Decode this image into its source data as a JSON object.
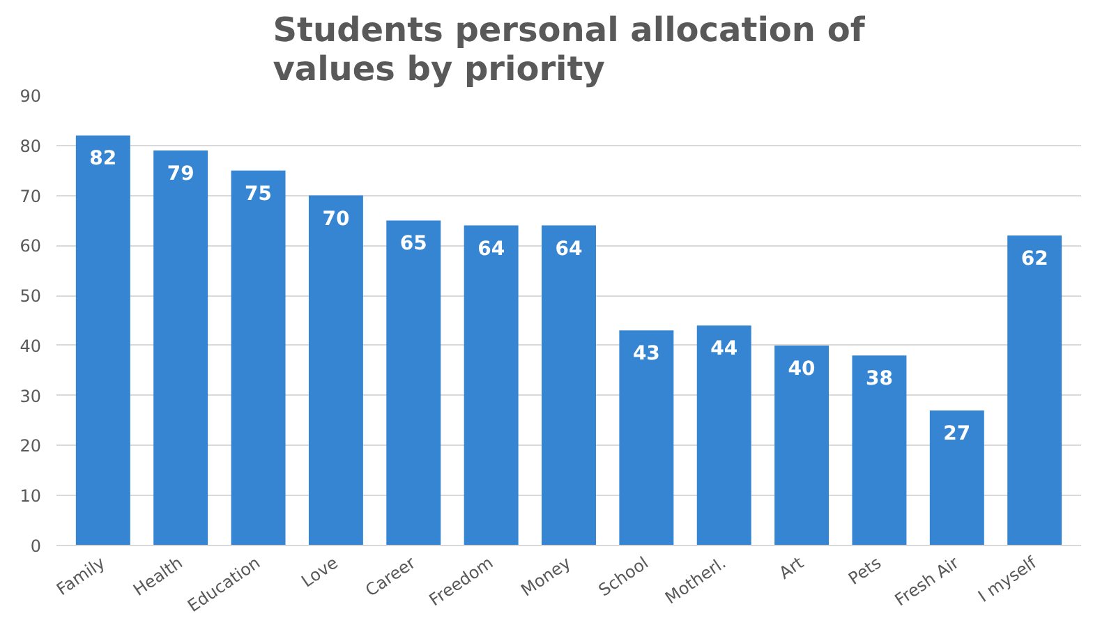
{
  "chart_data": {
    "type": "bar",
    "title": "Students personal allocation of values by priority",
    "categories": [
      "Family",
      "Health",
      "Education",
      "Love",
      "Career",
      "Freedom",
      "Money",
      "School",
      "Motherl.",
      "Art",
      "Pets",
      "Fresh Air",
      "I myself"
    ],
    "values": [
      82,
      79,
      75,
      70,
      65,
      64,
      64,
      43,
      44,
      40,
      38,
      27,
      62
    ],
    "color": "#3585d2",
    "ylim": [
      0,
      90
    ],
    "yticks": [
      0,
      10,
      20,
      30,
      40,
      50,
      60,
      70,
      80,
      90
    ],
    "grid": "y",
    "data_labels": true
  }
}
